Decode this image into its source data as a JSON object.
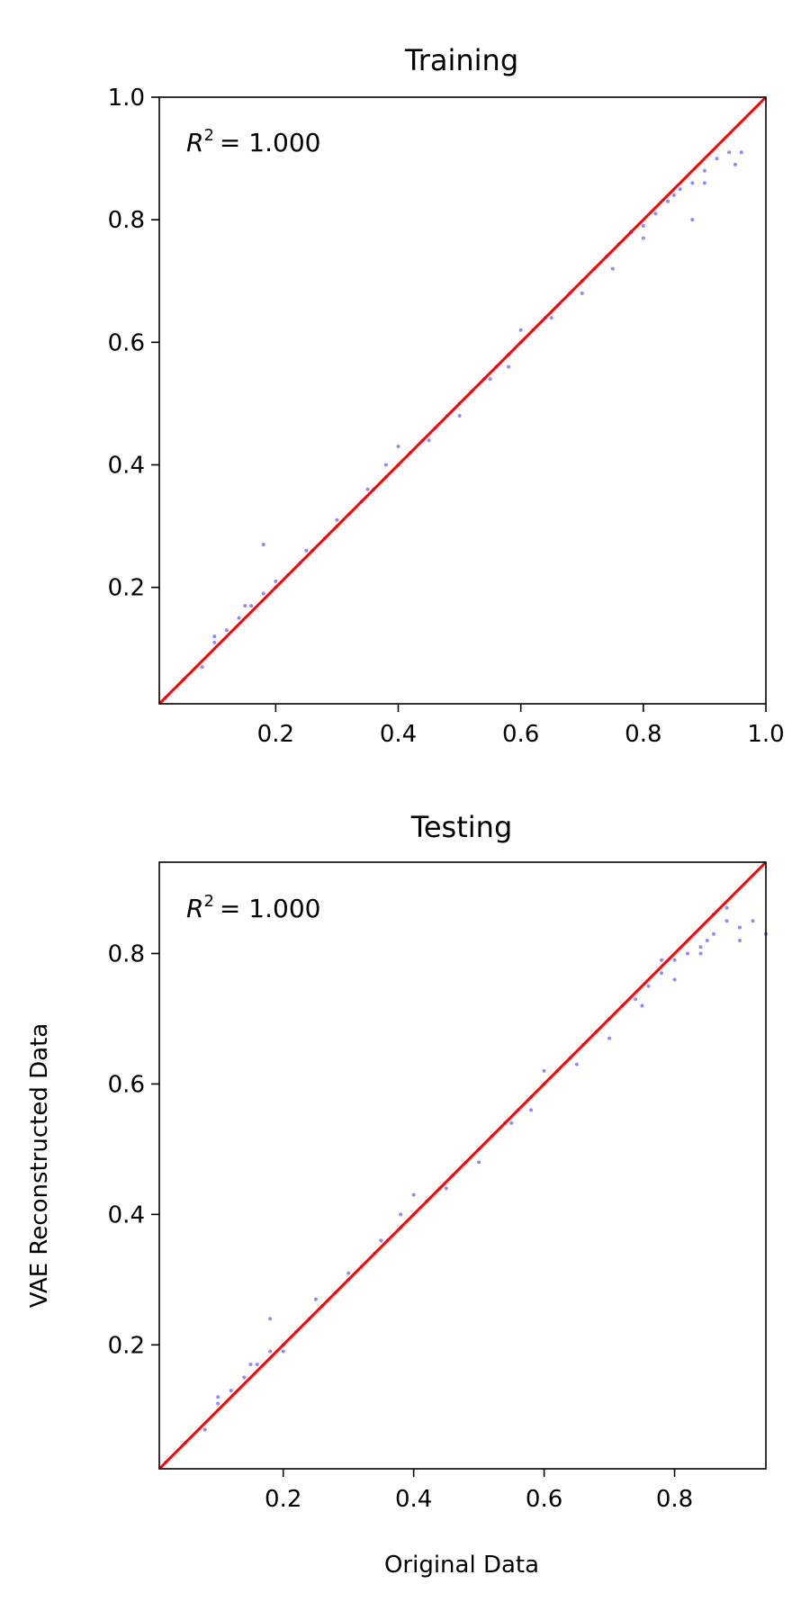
{
  "chart_data": [
    {
      "type": "scatter",
      "title": "Training",
      "xlabel": "",
      "ylabel": "",
      "xlim": [
        0.01,
        1.0
      ],
      "ylim": [
        0.01,
        1.0
      ],
      "xticks": [
        0.2,
        0.4,
        0.6,
        0.8,
        1.0
      ],
      "xtick_labels": [
        "0.2",
        "0.4",
        "0.6",
        "0.8",
        "1.0"
      ],
      "yticks": [
        0.2,
        0.4,
        0.6,
        0.8,
        1.0
      ],
      "ytick_labels": [
        "0.2",
        "0.4",
        "0.6",
        "0.8",
        "1.0"
      ],
      "annotation": "= 1.000",
      "annotation_symbol": "R",
      "annotation_sup": "2",
      "series": [
        {
          "kind": "points",
          "color": "#0000ff",
          "x": [
            0.02,
            0.05,
            0.08,
            0.1,
            0.12,
            0.14,
            0.16,
            0.18,
            0.2,
            0.22,
            0.24,
            0.26,
            0.28,
            0.3,
            0.32,
            0.34,
            0.36,
            0.38,
            0.4,
            0.42,
            0.44,
            0.46,
            0.48,
            0.5,
            0.52,
            0.54,
            0.56,
            0.58,
            0.6,
            0.62,
            0.64,
            0.66,
            0.68,
            0.7,
            0.72,
            0.74,
            0.76,
            0.78,
            0.8,
            0.82,
            0.84,
            0.86,
            0.88,
            0.9,
            0.92,
            0.94,
            0.96,
            0.1,
            0.2,
            0.3,
            0.4,
            0.5,
            0.6,
            0.7,
            0.8,
            0.9,
            0.15,
            0.25,
            0.35,
            0.45,
            0.55,
            0.65,
            0.75,
            0.85,
            0.95,
            0.18,
            0.38,
            0.58,
            0.78,
            0.88
          ],
          "y": [
            0.02,
            0.05,
            0.07,
            0.11,
            0.13,
            0.15,
            0.17,
            0.19,
            0.21,
            0.22,
            0.24,
            0.26,
            0.28,
            0.3,
            0.32,
            0.34,
            0.36,
            0.38,
            0.4,
            0.42,
            0.44,
            0.46,
            0.48,
            0.5,
            0.52,
            0.54,
            0.56,
            0.58,
            0.6,
            0.62,
            0.64,
            0.66,
            0.68,
            0.7,
            0.72,
            0.74,
            0.76,
            0.78,
            0.79,
            0.81,
            0.83,
            0.85,
            0.86,
            0.88,
            0.9,
            0.91,
            0.91,
            0.12,
            0.2,
            0.31,
            0.43,
            0.48,
            0.62,
            0.68,
            0.77,
            0.86,
            0.17,
            0.26,
            0.36,
            0.44,
            0.54,
            0.64,
            0.72,
            0.84,
            0.89,
            0.27,
            0.4,
            0.56,
            0.78,
            0.8
          ]
        },
        {
          "kind": "line",
          "color": "#ff0000",
          "x": [
            0.01,
            1.0
          ],
          "y": [
            0.01,
            1.0
          ]
        }
      ]
    },
    {
      "type": "scatter",
      "title": "Testing",
      "xlabel": "Original Data",
      "ylabel": "VAE Reconstructed Data",
      "xlim": [
        0.01,
        0.94
      ],
      "ylim": [
        0.01,
        0.94
      ],
      "xticks": [
        0.2,
        0.4,
        0.6,
        0.8
      ],
      "xtick_labels": [
        "0.2",
        "0.4",
        "0.6",
        "0.8"
      ],
      "yticks": [
        0.2,
        0.4,
        0.6,
        0.8
      ],
      "ytick_labels": [
        "0.2",
        "0.4",
        "0.6",
        "0.8"
      ],
      "annotation": "= 1.000",
      "annotation_symbol": "R",
      "annotation_sup": "2",
      "series": [
        {
          "kind": "points",
          "color": "#0000ff",
          "x": [
            0.02,
            0.05,
            0.08,
            0.1,
            0.12,
            0.14,
            0.16,
            0.18,
            0.2,
            0.22,
            0.24,
            0.26,
            0.28,
            0.3,
            0.32,
            0.34,
            0.36,
            0.38,
            0.4,
            0.42,
            0.44,
            0.46,
            0.48,
            0.5,
            0.52,
            0.54,
            0.56,
            0.58,
            0.6,
            0.62,
            0.64,
            0.66,
            0.68,
            0.7,
            0.72,
            0.74,
            0.76,
            0.78,
            0.8,
            0.82,
            0.84,
            0.86,
            0.88,
            0.9,
            0.92,
            0.94,
            0.1,
            0.2,
            0.3,
            0.4,
            0.5,
            0.6,
            0.7,
            0.8,
            0.88,
            0.15,
            0.25,
            0.35,
            0.45,
            0.55,
            0.65,
            0.75,
            0.85,
            0.18,
            0.38,
            0.58,
            0.78,
            0.86,
            0.9,
            0.84
          ],
          "y": [
            0.02,
            0.05,
            0.07,
            0.11,
            0.13,
            0.15,
            0.17,
            0.19,
            0.2,
            0.22,
            0.24,
            0.26,
            0.28,
            0.3,
            0.32,
            0.34,
            0.36,
            0.38,
            0.4,
            0.42,
            0.44,
            0.46,
            0.48,
            0.5,
            0.52,
            0.54,
            0.56,
            0.58,
            0.6,
            0.62,
            0.64,
            0.66,
            0.68,
            0.7,
            0.72,
            0.73,
            0.75,
            0.77,
            0.79,
            0.8,
            0.81,
            0.83,
            0.85,
            0.84,
            0.85,
            0.83,
            0.12,
            0.19,
            0.31,
            0.43,
            0.48,
            0.62,
            0.67,
            0.76,
            0.87,
            0.17,
            0.27,
            0.36,
            0.44,
            0.54,
            0.63,
            0.72,
            0.82,
            0.24,
            0.4,
            0.56,
            0.79,
            0.86,
            0.82,
            0.8
          ]
        },
        {
          "kind": "line",
          "color": "#ff0000",
          "x": [
            0.01,
            0.94
          ],
          "y": [
            0.01,
            0.94
          ]
        }
      ]
    }
  ]
}
